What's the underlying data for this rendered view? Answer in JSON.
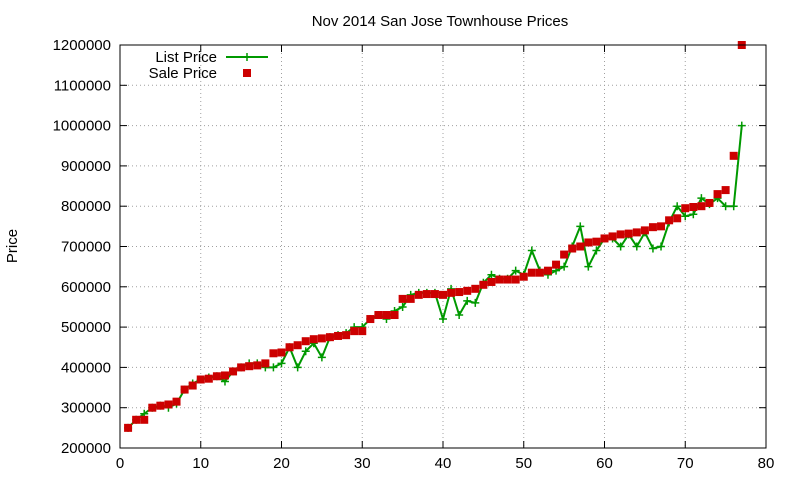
{
  "chart_data": {
    "type": "line",
    "title": "Nov 2014 San Jose Townhouse Prices",
    "xlabel": "",
    "ylabel": "Price",
    "xlim": [
      0,
      80
    ],
    "ylim": [
      200000,
      1200000
    ],
    "xticks": [
      "0",
      "10",
      "20",
      "30",
      "40",
      "50",
      "60",
      "70",
      "80"
    ],
    "yticks": [
      "200000",
      "300000",
      "400000",
      "500000",
      "600000",
      "700000",
      "800000",
      "900000",
      "1000000",
      "1100000",
      "1200000"
    ],
    "grid": true,
    "legend_position": "top-left",
    "series": [
      {
        "name": "List Price",
        "style": "line+cross",
        "color": "#009900",
        "x": [
          1,
          2,
          3,
          4,
          5,
          6,
          7,
          8,
          9,
          10,
          11,
          12,
          13,
          14,
          15,
          16,
          17,
          18,
          19,
          20,
          21,
          22,
          23,
          24,
          25,
          26,
          27,
          28,
          29,
          30,
          31,
          32,
          33,
          34,
          35,
          36,
          37,
          38,
          39,
          40,
          41,
          42,
          43,
          44,
          45,
          46,
          47,
          48,
          49,
          50,
          51,
          52,
          53,
          54,
          55,
          56,
          57,
          58,
          59,
          60,
          61,
          62,
          63,
          64,
          65,
          66,
          67,
          68,
          69,
          70,
          71,
          72,
          73,
          74,
          75,
          76,
          77
        ],
        "y": [
          250000,
          270000,
          285000,
          300000,
          305000,
          300000,
          310000,
          345000,
          360000,
          370000,
          375000,
          378000,
          365000,
          390000,
          400000,
          410000,
          410000,
          400000,
          400000,
          410000,
          450000,
          400000,
          440000,
          460000,
          425000,
          475000,
          480000,
          485000,
          500000,
          500000,
          520000,
          530000,
          520000,
          540000,
          550000,
          580000,
          585000,
          585000,
          585000,
          520000,
          595000,
          530000,
          565000,
          560000,
          610000,
          630000,
          620000,
          620000,
          640000,
          630000,
          690000,
          640000,
          630000,
          640000,
          650000,
          700000,
          750000,
          650000,
          690000,
          720000,
          720000,
          700000,
          730000,
          700000,
          735000,
          695000,
          700000,
          760000,
          800000,
          775000,
          780000,
          820000,
          805000,
          820000,
          800000,
          800000,
          1000000
        ]
      },
      {
        "name": "Sale Price",
        "style": "square",
        "color": "#cc0000",
        "x": [
          1,
          2,
          3,
          4,
          5,
          6,
          7,
          8,
          9,
          10,
          11,
          12,
          13,
          14,
          15,
          16,
          17,
          18,
          19,
          20,
          21,
          22,
          23,
          24,
          25,
          26,
          27,
          28,
          29,
          30,
          31,
          32,
          33,
          34,
          35,
          36,
          37,
          38,
          39,
          40,
          41,
          42,
          43,
          44,
          45,
          46,
          47,
          48,
          49,
          50,
          51,
          52,
          53,
          54,
          55,
          56,
          57,
          58,
          59,
          60,
          61,
          62,
          63,
          64,
          65,
          66,
          67,
          68,
          69,
          70,
          71,
          72,
          73,
          74,
          75,
          76,
          77
        ],
        "y": [
          250000,
          270000,
          270000,
          300000,
          305000,
          308000,
          315000,
          345000,
          355000,
          370000,
          372000,
          378000,
          380000,
          390000,
          400000,
          403000,
          405000,
          410000,
          435000,
          437000,
          450000,
          455000,
          465000,
          470000,
          472000,
          475000,
          478000,
          480000,
          490000,
          490000,
          520000,
          530000,
          530000,
          530000,
          570000,
          570000,
          580000,
          582000,
          582000,
          580000,
          585000,
          587000,
          590000,
          595000,
          605000,
          612000,
          618000,
          618000,
          618000,
          625000,
          635000,
          635000,
          640000,
          655000,
          680000,
          695000,
          700000,
          710000,
          712000,
          720000,
          725000,
          730000,
          732000,
          735000,
          740000,
          748000,
          750000,
          765000,
          770000,
          795000,
          798000,
          800000,
          808000,
          830000,
          840000,
          925000,
          1200000
        ]
      }
    ]
  }
}
